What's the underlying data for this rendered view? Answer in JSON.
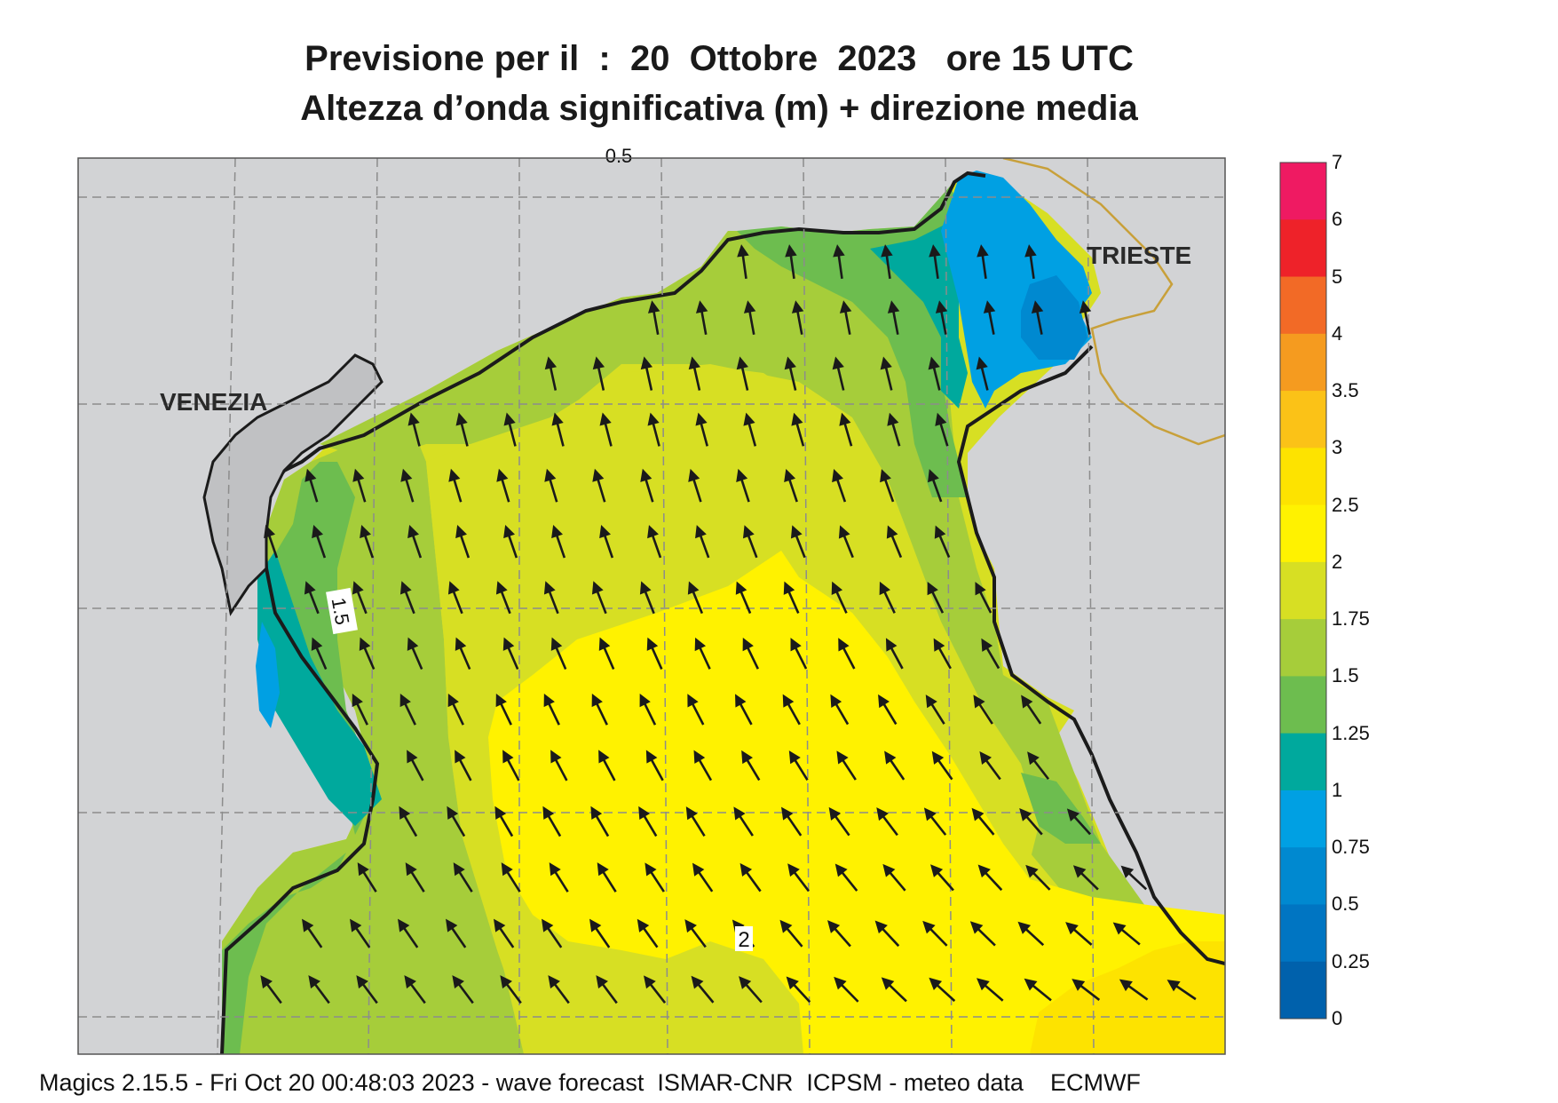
{
  "header": {
    "title_line1": "Previsione per il  :  20  Ottobre  2023   ore 15 UTC",
    "title_line2": "Altezza d’onda significativa (m) + direzione media"
  },
  "map": {
    "cities": {
      "venezia": "VENEZIA",
      "trieste": "TRIESTE"
    },
    "contour_labels": {
      "c15": "1.5",
      "c2": "2",
      "c05": "0.5"
    },
    "arrow_direction": "north-northwest",
    "land_color": "#d2d3d5"
  },
  "colorbar": {
    "ticks": [
      "7",
      "6",
      "5",
      "4",
      "3.5",
      "3",
      "2.5",
      "2",
      "1.75",
      "1.5",
      "1.25",
      "1",
      "0.75",
      "0.5",
      "0.25",
      "0"
    ],
    "colors": [
      "#ef1a62",
      "#ee2229",
      "#f26a26",
      "#f59b1f",
      "#fbc217",
      "#fde300",
      "#fff200",
      "#d7df23",
      "#a6cd3a",
      "#6dbd4f",
      "#00a99d",
      "#00a0e3",
      "#0089d0",
      "#0075c2",
      "#0061ac"
    ]
  },
  "footer": {
    "text": "Magics 2.15.5 - Fri Oct 20 00:48:03 2023 - wave forecast  ISMAR-CNR  ICPSM - meteo data    ECMWF"
  }
}
